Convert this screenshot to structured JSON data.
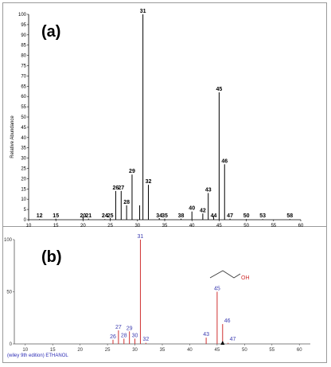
{
  "panel_a_label": "(a)",
  "panel_b_label": "(b)",
  "footer_text": "(wiley 9th edition) ETHANOL",
  "molecule_label": "OH",
  "chart_data": [
    {
      "type": "bar",
      "panel": "(a)",
      "xlabel": "",
      "ylabel": "Relative Abundance",
      "xlim": [
        10,
        60
      ],
      "ylim": [
        0,
        100
      ],
      "x_ticks": [
        10,
        15,
        20,
        25,
        30,
        35,
        40,
        45,
        50,
        55,
        60
      ],
      "y_ticks": [
        0,
        5,
        10,
        15,
        20,
        25,
        30,
        35,
        40,
        45,
        50,
        55,
        60,
        65,
        70,
        75,
        80,
        85,
        90,
        95,
        100
      ],
      "bar_color": "#000000",
      "peaks": [
        {
          "mz": 12,
          "intensity": 0.3,
          "label": "12"
        },
        {
          "mz": 15,
          "intensity": 0.5,
          "label": "15"
        },
        {
          "mz": 20,
          "intensity": 1.5,
          "label": "20"
        },
        {
          "mz": 21,
          "intensity": 0.5,
          "label": "21"
        },
        {
          "mz": 24,
          "intensity": 0.3,
          "label": "24"
        },
        {
          "mz": 25,
          "intensity": 0.8,
          "label": "25"
        },
        {
          "mz": 26,
          "intensity": 14,
          "label": "26"
        },
        {
          "mz": 27,
          "intensity": 14,
          "label": "27"
        },
        {
          "mz": 28,
          "intensity": 7,
          "label": "28"
        },
        {
          "mz": 29,
          "intensity": 22,
          "label": "29"
        },
        {
          "mz": 30,
          "intensity": 7,
          "label": "",
          "position": 30.4
        },
        {
          "mz": 31,
          "intensity": 100,
          "label": "31"
        },
        {
          "mz": 32,
          "intensity": 17,
          "label": "32"
        },
        {
          "mz": 34,
          "intensity": 0.8,
          "label": "34"
        },
        {
          "mz": 35,
          "intensity": 0.5,
          "label": "35"
        },
        {
          "mz": 38,
          "intensity": 0.5,
          "label": "38"
        },
        {
          "mz": 40,
          "intensity": 4,
          "label": "40"
        },
        {
          "mz": 42,
          "intensity": 3,
          "label": "42"
        },
        {
          "mz": 43,
          "intensity": 13,
          "label": "43"
        },
        {
          "mz": 44,
          "intensity": 1.5,
          "label": "44"
        },
        {
          "mz": 45,
          "intensity": 62,
          "label": "45"
        },
        {
          "mz": 46,
          "intensity": 27,
          "label": "46"
        },
        {
          "mz": 47,
          "intensity": 0.5,
          "label": "47"
        },
        {
          "mz": 50,
          "intensity": 0.3,
          "label": "50"
        },
        {
          "mz": 53,
          "intensity": 0.3,
          "label": "53"
        },
        {
          "mz": 58,
          "intensity": 0.3,
          "label": "58"
        }
      ]
    },
    {
      "type": "bar",
      "panel": "(b)",
      "xlabel": "",
      "ylabel": "",
      "xlim": [
        8,
        62
      ],
      "ylim": [
        0,
        100
      ],
      "x_ticks": [
        10,
        15,
        20,
        25,
        30,
        35,
        40,
        45,
        50,
        55,
        60
      ],
      "y_ticks": [
        0,
        50,
        100
      ],
      "bar_color": "#d03030",
      "peaks": [
        {
          "mz": 26,
          "intensity": 4,
          "label": "26"
        },
        {
          "mz": 27,
          "intensity": 13,
          "label": "27"
        },
        {
          "mz": 28,
          "intensity": 5,
          "label": "28"
        },
        {
          "mz": 29,
          "intensity": 12,
          "label": "29"
        },
        {
          "mz": 30,
          "intensity": 5,
          "label": "30"
        },
        {
          "mz": 31,
          "intensity": 100,
          "label": "31"
        },
        {
          "mz": 32,
          "intensity": 1,
          "label": "32"
        },
        {
          "mz": 43,
          "intensity": 6,
          "label": "43"
        },
        {
          "mz": 45,
          "intensity": 50,
          "label": "45"
        },
        {
          "mz": 46,
          "intensity": 19,
          "label": "46"
        },
        {
          "mz": 47,
          "intensity": 1,
          "label": "47"
        }
      ]
    }
  ]
}
